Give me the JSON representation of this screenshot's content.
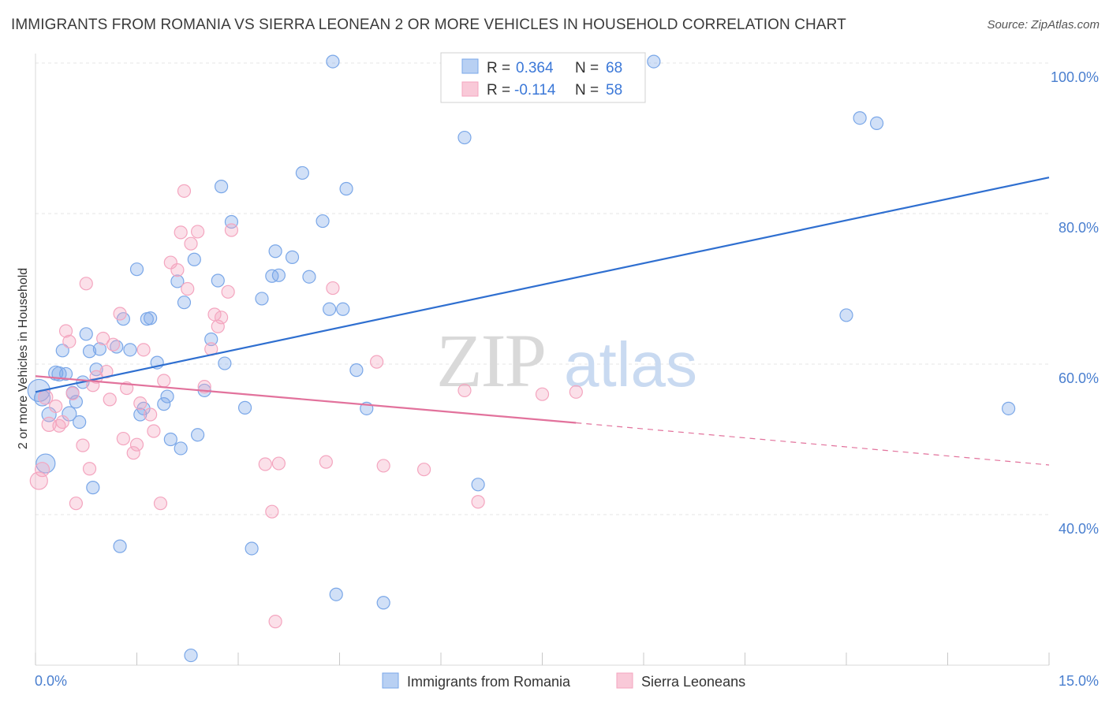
{
  "title": "IMMIGRANTS FROM ROMANIA VS SIERRA LEONEAN 2 OR MORE VEHICLES IN HOUSEHOLD CORRELATION CHART",
  "source": "Source: ZipAtlas.com",
  "watermark": {
    "zip": "ZIP",
    "atlas": "atlas"
  },
  "legend": {
    "r_label": "R =",
    "n_label": "N =",
    "entries": [
      {
        "r": "0.364",
        "n": "68"
      },
      {
        "r": "-0.114",
        "n": "58"
      }
    ]
  },
  "chart_data": {
    "type": "scatter",
    "xlabel": "",
    "ylabel": "2 or more Vehicles in Household",
    "xlim": [
      0,
      15
    ],
    "ylim": [
      20,
      100
    ],
    "x_tick_labels": [
      "0.0%",
      "15.0%"
    ],
    "y_ticks": [
      40,
      60,
      80,
      100
    ],
    "y_tick_labels": [
      "40.0%",
      "60.0%",
      "80.0%",
      "100.0%"
    ],
    "grid": true,
    "legend_position": "top-center",
    "series": [
      {
        "name": "Immigrants from Romania",
        "color": "#7aa7e8",
        "line_color": "#2f6fd0",
        "trend": {
          "x": [
            0,
            15
          ],
          "y": [
            56.3,
            84.8
          ]
        },
        "points": [
          [
            0.05,
            56.5,
            14
          ],
          [
            0.1,
            55.5,
            10
          ],
          [
            0.15,
            46.8,
            12
          ],
          [
            0.2,
            53.3,
            9
          ],
          [
            0.3,
            58.8,
            9
          ],
          [
            0.35,
            58.7,
            9
          ],
          [
            0.4,
            61.8,
            8
          ],
          [
            0.45,
            58.7,
            8
          ],
          [
            0.5,
            53.4,
            9
          ],
          [
            0.55,
            56.2,
            8
          ],
          [
            0.6,
            55.0,
            8
          ],
          [
            0.65,
            52.3,
            8
          ],
          [
            0.7,
            57.6,
            8
          ],
          [
            0.75,
            64.0,
            8
          ],
          [
            0.8,
            61.7,
            8
          ],
          [
            0.85,
            43.6,
            8
          ],
          [
            0.9,
            59.3,
            8
          ],
          [
            0.95,
            62.0,
            8
          ],
          [
            1.2,
            62.3,
            8
          ],
          [
            1.25,
            35.8,
            8
          ],
          [
            1.3,
            66.0,
            8
          ],
          [
            1.4,
            61.9,
            8
          ],
          [
            1.5,
            72.6,
            8
          ],
          [
            1.55,
            53.3,
            8
          ],
          [
            1.6,
            54.1,
            8
          ],
          [
            1.65,
            66.0,
            8
          ],
          [
            1.7,
            66.1,
            8
          ],
          [
            1.8,
            60.2,
            8
          ],
          [
            1.9,
            54.7,
            8
          ],
          [
            1.95,
            55.7,
            8
          ],
          [
            2.0,
            50.0,
            8
          ],
          [
            2.1,
            71.0,
            8
          ],
          [
            2.15,
            48.8,
            8
          ],
          [
            2.2,
            68.2,
            8
          ],
          [
            2.3,
            21.3,
            8
          ],
          [
            2.35,
            73.9,
            8
          ],
          [
            2.4,
            50.6,
            8
          ],
          [
            2.5,
            56.5,
            8
          ],
          [
            2.6,
            63.3,
            8
          ],
          [
            2.7,
            71.1,
            8
          ],
          [
            2.75,
            83.6,
            8
          ],
          [
            2.8,
            60.1,
            8
          ],
          [
            2.9,
            78.9,
            8
          ],
          [
            3.1,
            54.2,
            8
          ],
          [
            3.2,
            35.5,
            8
          ],
          [
            3.35,
            68.7,
            8
          ],
          [
            3.5,
            71.7,
            8
          ],
          [
            3.55,
            75.0,
            8
          ],
          [
            3.6,
            71.8,
            8
          ],
          [
            3.8,
            74.2,
            8
          ],
          [
            3.95,
            85.4,
            8
          ],
          [
            4.05,
            71.6,
            8
          ],
          [
            4.25,
            79.0,
            8
          ],
          [
            4.35,
            67.3,
            8
          ],
          [
            4.4,
            100.2,
            8
          ],
          [
            4.45,
            29.4,
            8
          ],
          [
            4.55,
            67.3,
            8
          ],
          [
            4.6,
            83.3,
            8
          ],
          [
            4.75,
            59.2,
            8
          ],
          [
            4.9,
            54.1,
            8
          ],
          [
            5.15,
            28.3,
            8
          ],
          [
            6.35,
            90.1,
            8
          ],
          [
            6.55,
            44.0,
            8
          ],
          [
            9.15,
            100.2,
            8
          ],
          [
            12.0,
            66.5,
            8
          ],
          [
            12.2,
            92.7,
            8
          ],
          [
            12.45,
            92.0,
            8
          ],
          [
            14.4,
            54.1,
            8
          ]
        ]
      },
      {
        "name": "Sierra Leoneans",
        "color": "#f4a5bf",
        "line_color": "#e2729c",
        "trend": {
          "x": [
            0,
            8.0
          ],
          "y": [
            58.4,
            52.2
          ]
        },
        "trend_dashed": {
          "x": [
            8.0,
            15
          ],
          "y": [
            52.2,
            46.6
          ]
        },
        "points": [
          [
            0.05,
            44.5,
            11
          ],
          [
            0.1,
            46.0,
            9
          ],
          [
            0.15,
            55.6,
            9
          ],
          [
            0.2,
            52.0,
            9
          ],
          [
            0.3,
            54.4,
            8
          ],
          [
            0.35,
            51.8,
            8
          ],
          [
            0.4,
            52.3,
            8
          ],
          [
            0.45,
            64.4,
            8
          ],
          [
            0.5,
            63.0,
            8
          ],
          [
            0.55,
            56.1,
            8
          ],
          [
            0.6,
            41.5,
            8
          ],
          [
            0.7,
            49.2,
            8
          ],
          [
            0.75,
            70.7,
            8
          ],
          [
            0.8,
            46.1,
            8
          ],
          [
            0.85,
            57.2,
            8
          ],
          [
            0.9,
            58.3,
            8
          ],
          [
            1.0,
            63.4,
            8
          ],
          [
            1.05,
            59.0,
            8
          ],
          [
            1.1,
            55.3,
            8
          ],
          [
            1.15,
            62.6,
            8
          ],
          [
            1.25,
            66.7,
            8
          ],
          [
            1.3,
            50.1,
            8
          ],
          [
            1.35,
            56.8,
            8
          ],
          [
            1.45,
            48.2,
            8
          ],
          [
            1.5,
            49.3,
            8
          ],
          [
            1.55,
            54.8,
            8
          ],
          [
            1.6,
            61.9,
            8
          ],
          [
            1.7,
            53.3,
            8
          ],
          [
            1.75,
            51.1,
            8
          ],
          [
            1.85,
            41.5,
            8
          ],
          [
            1.9,
            57.8,
            8
          ],
          [
            2.0,
            73.5,
            8
          ],
          [
            2.1,
            72.5,
            8
          ],
          [
            2.15,
            77.5,
            8
          ],
          [
            2.2,
            83.0,
            8
          ],
          [
            2.25,
            70.0,
            8
          ],
          [
            2.3,
            76.0,
            8
          ],
          [
            2.4,
            77.6,
            8
          ],
          [
            2.5,
            57.0,
            8
          ],
          [
            2.6,
            62.0,
            8
          ],
          [
            2.65,
            66.6,
            8
          ],
          [
            2.7,
            65.0,
            8
          ],
          [
            2.75,
            66.2,
            8
          ],
          [
            2.85,
            69.6,
            8
          ],
          [
            2.9,
            77.8,
            8
          ],
          [
            3.4,
            46.7,
            8
          ],
          [
            3.5,
            40.4,
            8
          ],
          [
            3.55,
            25.8,
            8
          ],
          [
            3.6,
            46.8,
            8
          ],
          [
            4.3,
            47.0,
            8
          ],
          [
            4.4,
            70.1,
            8
          ],
          [
            5.05,
            60.3,
            8
          ],
          [
            5.15,
            46.5,
            8
          ],
          [
            5.75,
            46.0,
            8
          ],
          [
            6.35,
            56.5,
            8
          ],
          [
            6.55,
            41.7,
            8
          ],
          [
            7.5,
            56.0,
            8
          ],
          [
            8.0,
            56.3,
            8
          ]
        ]
      }
    ]
  }
}
